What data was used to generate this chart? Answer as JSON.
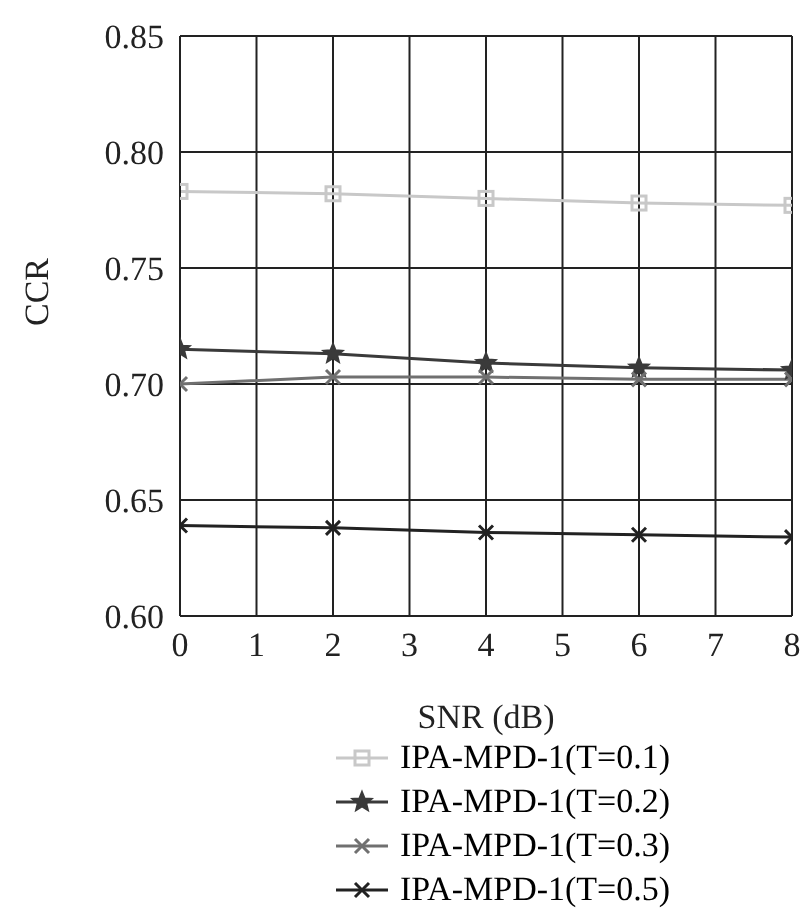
{
  "chart_data": {
    "type": "line",
    "xlabel": "SNR (dB)",
    "ylabel": "CCR",
    "x": [
      0,
      2,
      4,
      6,
      8
    ],
    "series": [
      {
        "name": "IPA-MPD-1(T=0.1)",
        "color": "#c8c8c8",
        "marker": "square",
        "values": [
          0.783,
          0.782,
          0.78,
          0.778,
          0.777
        ]
      },
      {
        "name": "IPA-MPD-1(T=0.2)",
        "color": "#3a3a3a",
        "marker": "star",
        "values": [
          0.715,
          0.713,
          0.709,
          0.707,
          0.706
        ]
      },
      {
        "name": "IPA-MPD-1(T=0.3)",
        "color": "#707070",
        "marker": "cross",
        "values": [
          0.7,
          0.703,
          0.703,
          0.702,
          0.702
        ]
      },
      {
        "name": "IPA-MPD-1(T=0.5)",
        "color": "#222222",
        "marker": "cross",
        "values": [
          0.639,
          0.638,
          0.636,
          0.635,
          0.634
        ]
      }
    ],
    "xlim": [
      0,
      8
    ],
    "xticks": [
      0,
      1,
      2,
      3,
      4,
      5,
      6,
      7,
      8
    ],
    "ylim": [
      0.6,
      0.85
    ],
    "yticks": [
      {
        "value": 0.6,
        "label": "0.60"
      },
      {
        "value": 0.65,
        "label": "0.65"
      },
      {
        "value": 0.7,
        "label": "0.70"
      },
      {
        "value": 0.75,
        "label": "0.75"
      },
      {
        "value": 0.8,
        "label": "0.80"
      },
      {
        "value": 0.85,
        "label": "0.85"
      }
    ],
    "grid": true,
    "legend": "bottom",
    "line_style": "solid"
  }
}
